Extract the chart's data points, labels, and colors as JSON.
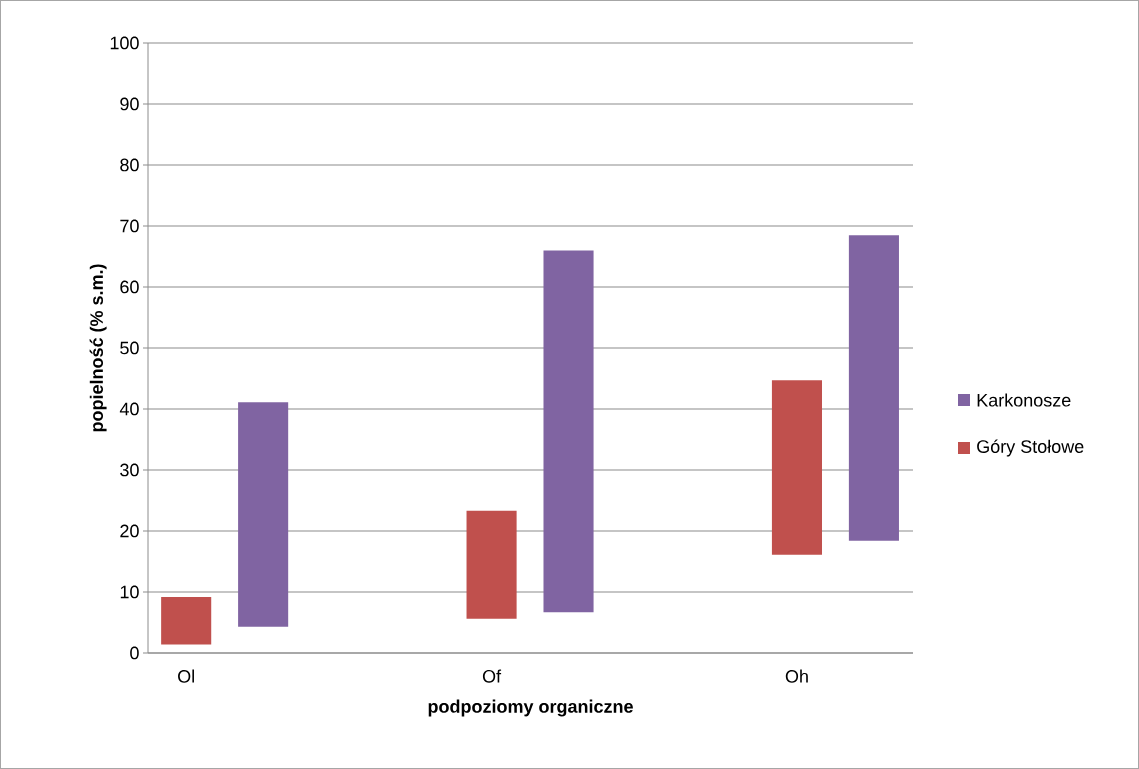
{
  "chart_data": {
    "type": "bar",
    "xlabel": "podpoziomy organiczne",
    "ylabel": "popielność (% s.m.)",
    "categories": [
      "Ol",
      "Of",
      "Oh"
    ],
    "series": [
      {
        "name": "Góry Stołowe",
        "color": "#c0504d",
        "values": [
          7.8,
          17.7,
          28.6
        ],
        "base": [
          1.4,
          5.6,
          16.1
        ]
      },
      {
        "name": "Karkonosze",
        "color": "#8064a2",
        "values": [
          36.8,
          59.3,
          50.1
        ],
        "base": [
          4.3,
          6.7,
          18.4
        ]
      }
    ],
    "ylim": [
      0,
      100
    ],
    "yticks": [
      0,
      10,
      20,
      30,
      40,
      50,
      60,
      70,
      80,
      90,
      100
    ],
    "grid": "y",
    "legend": "right"
  }
}
